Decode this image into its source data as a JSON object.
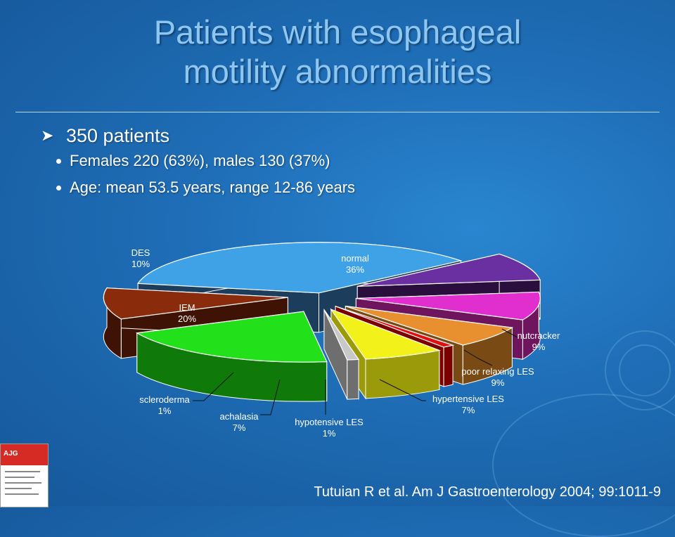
{
  "title": {
    "line1": "Patients with esophageal",
    "line2": "motility abnormalities"
  },
  "bullets": {
    "main": "350 patients",
    "sub": [
      "Females 220 (63%), males 130 (37%)",
      "Age: mean 53.5 years, range 12-86 years"
    ]
  },
  "citation": "Tutuian  R et al. Am J Gastroenterology 2004; 99:1011-9",
  "chart_data": {
    "type": "pie",
    "style": "3d exploded",
    "title": "",
    "slices": [
      {
        "name": "normal",
        "value": 36,
        "label": "36%",
        "color": "#3fa2e6",
        "side_color": "#1d3d5c"
      },
      {
        "name": "nutcracker",
        "value": 9,
        "label": "9%",
        "color": "#6a2fa0",
        "side_color": "#2a0f3e"
      },
      {
        "name": "poor relaxing LES",
        "value": 9,
        "label": "9%",
        "color": "#e12fcf",
        "side_color": "#6e155e"
      },
      {
        "name": "hypertensive LES",
        "value": 7,
        "label": "7%",
        "color": "#e8902f",
        "side_color": "#7a4a14"
      },
      {
        "name": "hypotensive LES",
        "value": 1,
        "label": "1%",
        "color": "#e01010",
        "side_color": "#7a0000"
      },
      {
        "name": "achalasia",
        "value": 7,
        "label": "7%",
        "color": "#f2f21a",
        "side_color": "#9a9a0a"
      },
      {
        "name": "scleroderma",
        "value": 1,
        "label": "1%",
        "color": "#c8c8c8",
        "side_color": "#6e6e6e"
      },
      {
        "name": "IEM",
        "value": 20,
        "label": "20%",
        "color": "#22e01a",
        "side_color": "#0f7a0a"
      },
      {
        "name": "DES",
        "value": 10,
        "label": "10%",
        "color": "#8a2c0c",
        "side_color": "#3e1204"
      }
    ]
  }
}
